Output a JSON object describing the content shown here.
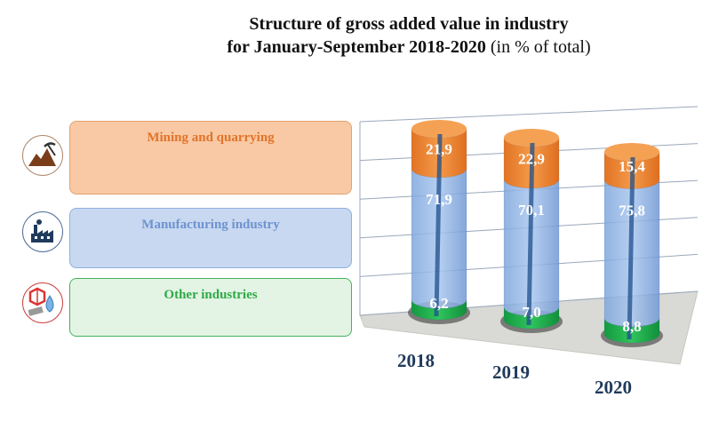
{
  "title": {
    "line1": "Structure of gross added value in industry",
    "line2_bold": "for January-September 2018-2020",
    "line2_normal": " (in % of total)"
  },
  "legend": [
    {
      "label": "Mining and quarrying",
      "color": "#e2732a",
      "fill": "#f8c9a4",
      "icon": "mining-icon"
    },
    {
      "label": "Manufacturing industry",
      "color": "#6e93cf",
      "fill": "#c8d8f0",
      "icon": "factory-icon"
    },
    {
      "label": "Other industries",
      "color": "#2eaa48",
      "fill": "#e4f4e4",
      "icon": "other-industries-icon"
    }
  ],
  "chart_data": {
    "type": "bar",
    "stacked": true,
    "title": "Structure of gross added value in industry for January-September 2018-2020 (in % of total)",
    "categories": [
      "2018",
      "2019",
      "2020"
    ],
    "series": [
      {
        "name": "Other industries",
        "values": [
          "6,2",
          "7,0",
          "8,8"
        ],
        "numeric": [
          6.2,
          7.0,
          8.8
        ],
        "color": "#1aa64a"
      },
      {
        "name": "Manufacturing industry",
        "values": [
          "71,9",
          "70,1",
          "75,8"
        ],
        "numeric": [
          71.9,
          70.1,
          75.8
        ],
        "color": "#6d9ee0"
      },
      {
        "name": "Mining and quarrying",
        "values": [
          "21,9",
          "22,9",
          "15,4"
        ],
        "numeric": [
          21.9,
          22.9,
          15.4
        ],
        "color": "#e6822b"
      }
    ],
    "ylim": [
      0,
      100
    ]
  }
}
